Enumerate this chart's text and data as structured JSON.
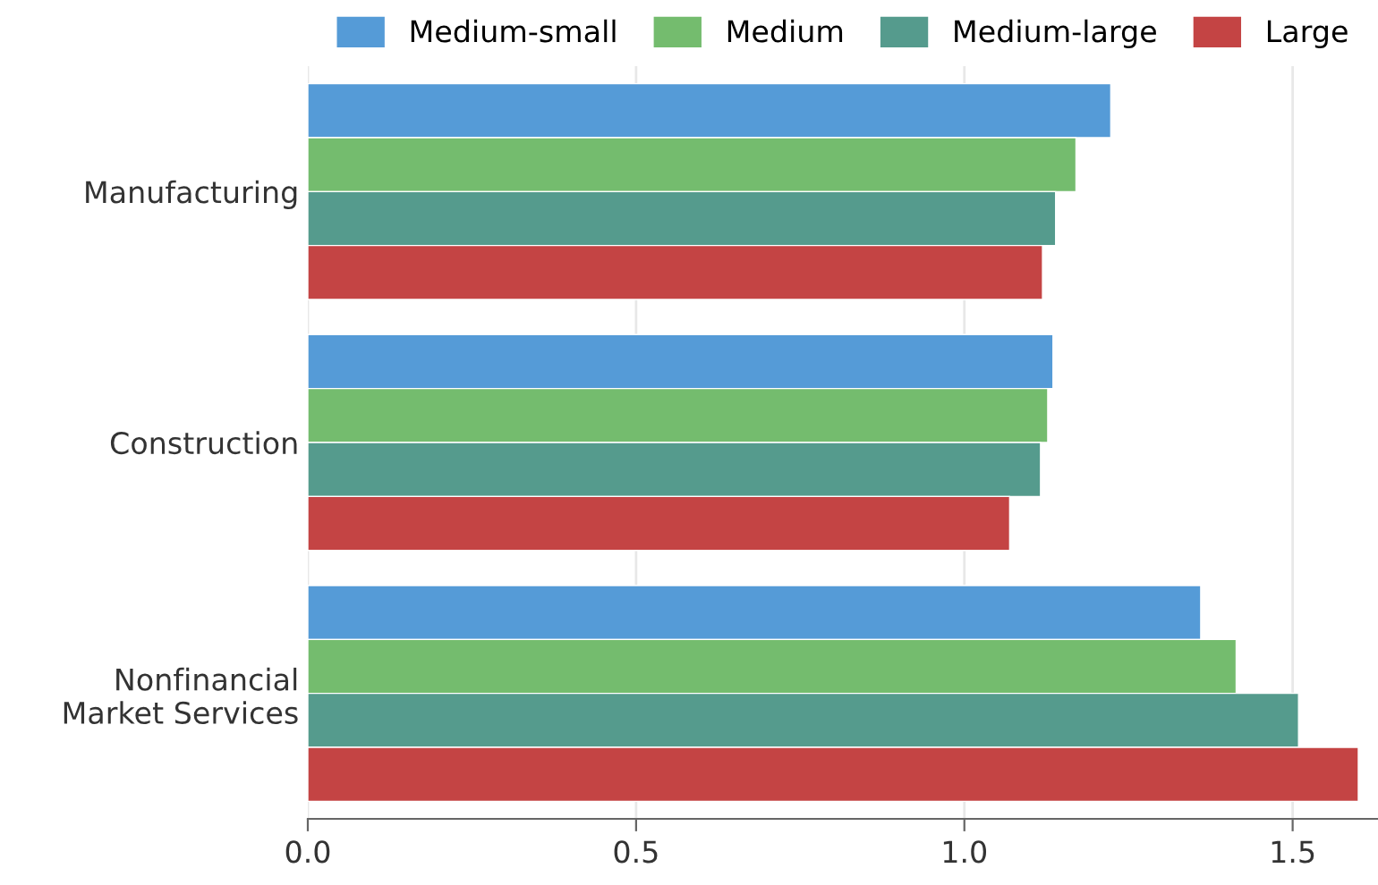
{
  "chart_data": {
    "type": "bar",
    "orientation": "horizontal",
    "categories": [
      "Manufacturing",
      "Construction",
      "Nonfinancial\nMarket Services"
    ],
    "series": [
      {
        "name": "Medium-small",
        "color": "#559bd7",
        "values": [
          1.223,
          1.135,
          1.36
        ]
      },
      {
        "name": "Medium",
        "color": "#74bc6e",
        "values": [
          1.17,
          1.127,
          1.414
        ]
      },
      {
        "name": "Medium-large",
        "color": "#559b8d",
        "values": [
          1.139,
          1.116,
          1.509
        ]
      },
      {
        "name": "Large",
        "color": "#c44444",
        "values": [
          1.119,
          1.069,
          1.6
        ]
      }
    ],
    "xlim": [
      0,
      1.63
    ],
    "xticks": [
      {
        "value": 0,
        "label": "0.0"
      },
      {
        "value": 0.5,
        "label": "0.5"
      },
      {
        "value": 1,
        "label": "1.0"
      },
      {
        "value": 1.5,
        "label": "1.5"
      }
    ],
    "grid": "x",
    "legend": "top"
  }
}
